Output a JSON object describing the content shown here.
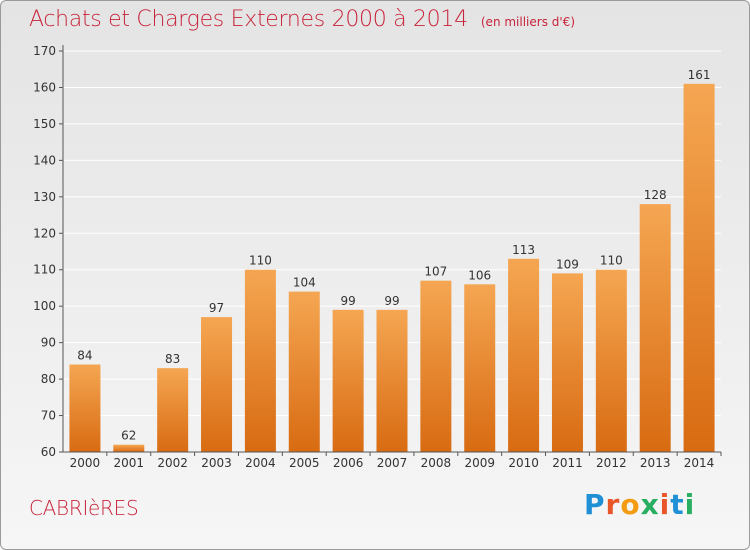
{
  "title": "Achats et Charges Externes 2000 à 2014",
  "unit_note": "(en milliers d'€)",
  "town": "CABRIèRES",
  "logo": {
    "text": "Proxiti",
    "letter_colors": [
      "#1f8fd6",
      "#e8562a",
      "#f39c12",
      "#27ae60",
      "#e8562a",
      "#1f8fd6",
      "#27ae60"
    ]
  },
  "colors": {
    "bar_top": "#f5a652",
    "bar_bottom": "#d86b12",
    "grid": "#ffffff",
    "title": "#c8233a",
    "axis": "#555555"
  },
  "chart_data": {
    "type": "bar",
    "categories": [
      "2000",
      "2001",
      "2002",
      "2003",
      "2004",
      "2005",
      "2006",
      "2007",
      "2008",
      "2009",
      "2010",
      "2011",
      "2012",
      "2013",
      "2014"
    ],
    "values": [
      84,
      62,
      83,
      97,
      110,
      104,
      99,
      99,
      107,
      106,
      113,
      109,
      110,
      128,
      161
    ],
    "ylim": [
      60,
      170
    ],
    "yticks": [
      60,
      70,
      80,
      90,
      100,
      110,
      120,
      130,
      140,
      150,
      160,
      170
    ],
    "grid": true,
    "xlabel": "",
    "ylabel": ""
  }
}
